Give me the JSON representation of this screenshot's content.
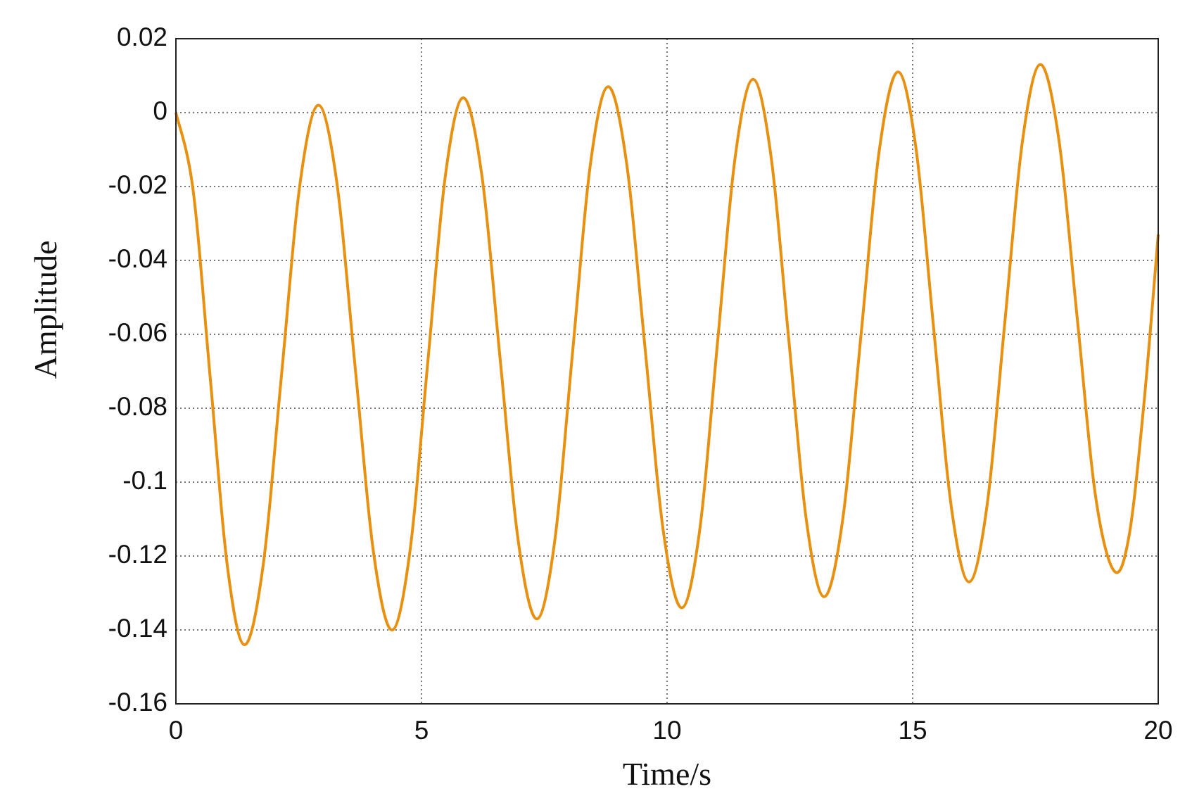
{
  "chart_data": {
    "type": "line",
    "xlabel": "Time/s",
    "ylabel": "Amplitude",
    "x": [
      0,
      0.35,
      0.7,
      1.05,
      1.4,
      1.775,
      2.15,
      2.525,
      2.9,
      3.275,
      3.65,
      4.025,
      4.4,
      4.763,
      5.125,
      5.488,
      5.85,
      6.225,
      6.6,
      6.975,
      7.35,
      7.713,
      8.075,
      8.438,
      8.8,
      9.175,
      9.55,
      9.925,
      10.3,
      10.663,
      11.025,
      11.388,
      11.75,
      12.113,
      12.475,
      12.838,
      13.2,
      13.575,
      13.95,
      14.325,
      14.7,
      15.063,
      15.425,
      15.788,
      16.15,
      16.513,
      16.875,
      17.238,
      17.6,
      17.975,
      18.35,
      18.725,
      19.1,
      19.4,
      19.7,
      20
    ],
    "series": [
      {
        "color": "#e8900f",
        "values": [
          0,
          -0.021,
          -0.072,
          -0.123,
          -0.144,
          -0.1226,
          -0.071,
          -0.0194,
          0.002,
          -0.0188,
          -0.069,
          -0.1192,
          -0.14,
          -0.1189,
          -0.068,
          -0.0169,
          0.004,
          -0.0166,
          -0.0665,
          -0.1164,
          -0.137,
          -0.1159,
          -0.065,
          -0.0141,
          0.007,
          -0.0136,
          -0.0635,
          -0.1134,
          -0.134,
          -0.1131,
          -0.0625,
          -0.0119,
          0.009,
          -0.0115,
          -0.061,
          -0.1105,
          -0.131,
          -0.1102,
          -0.06,
          -0.0098,
          0.011,
          -0.0092,
          -0.058,
          -0.1068,
          -0.127,
          -0.1065,
          -0.057,
          -0.0075,
          0.013,
          -0.0071,
          -0.0555,
          -0.1039,
          -0.124,
          -0.115,
          -0.08,
          -0.033
        ]
      }
    ],
    "xlim": [
      0,
      20
    ],
    "xticks": [
      0,
      5,
      10,
      15,
      20
    ],
    "ylim": [
      -0.16,
      0.02
    ],
    "yticks": [
      0.02,
      0,
      -0.02,
      -0.04,
      -0.06,
      -0.08,
      -0.1,
      -0.12,
      -0.14,
      -0.16
    ],
    "grid": true
  }
}
